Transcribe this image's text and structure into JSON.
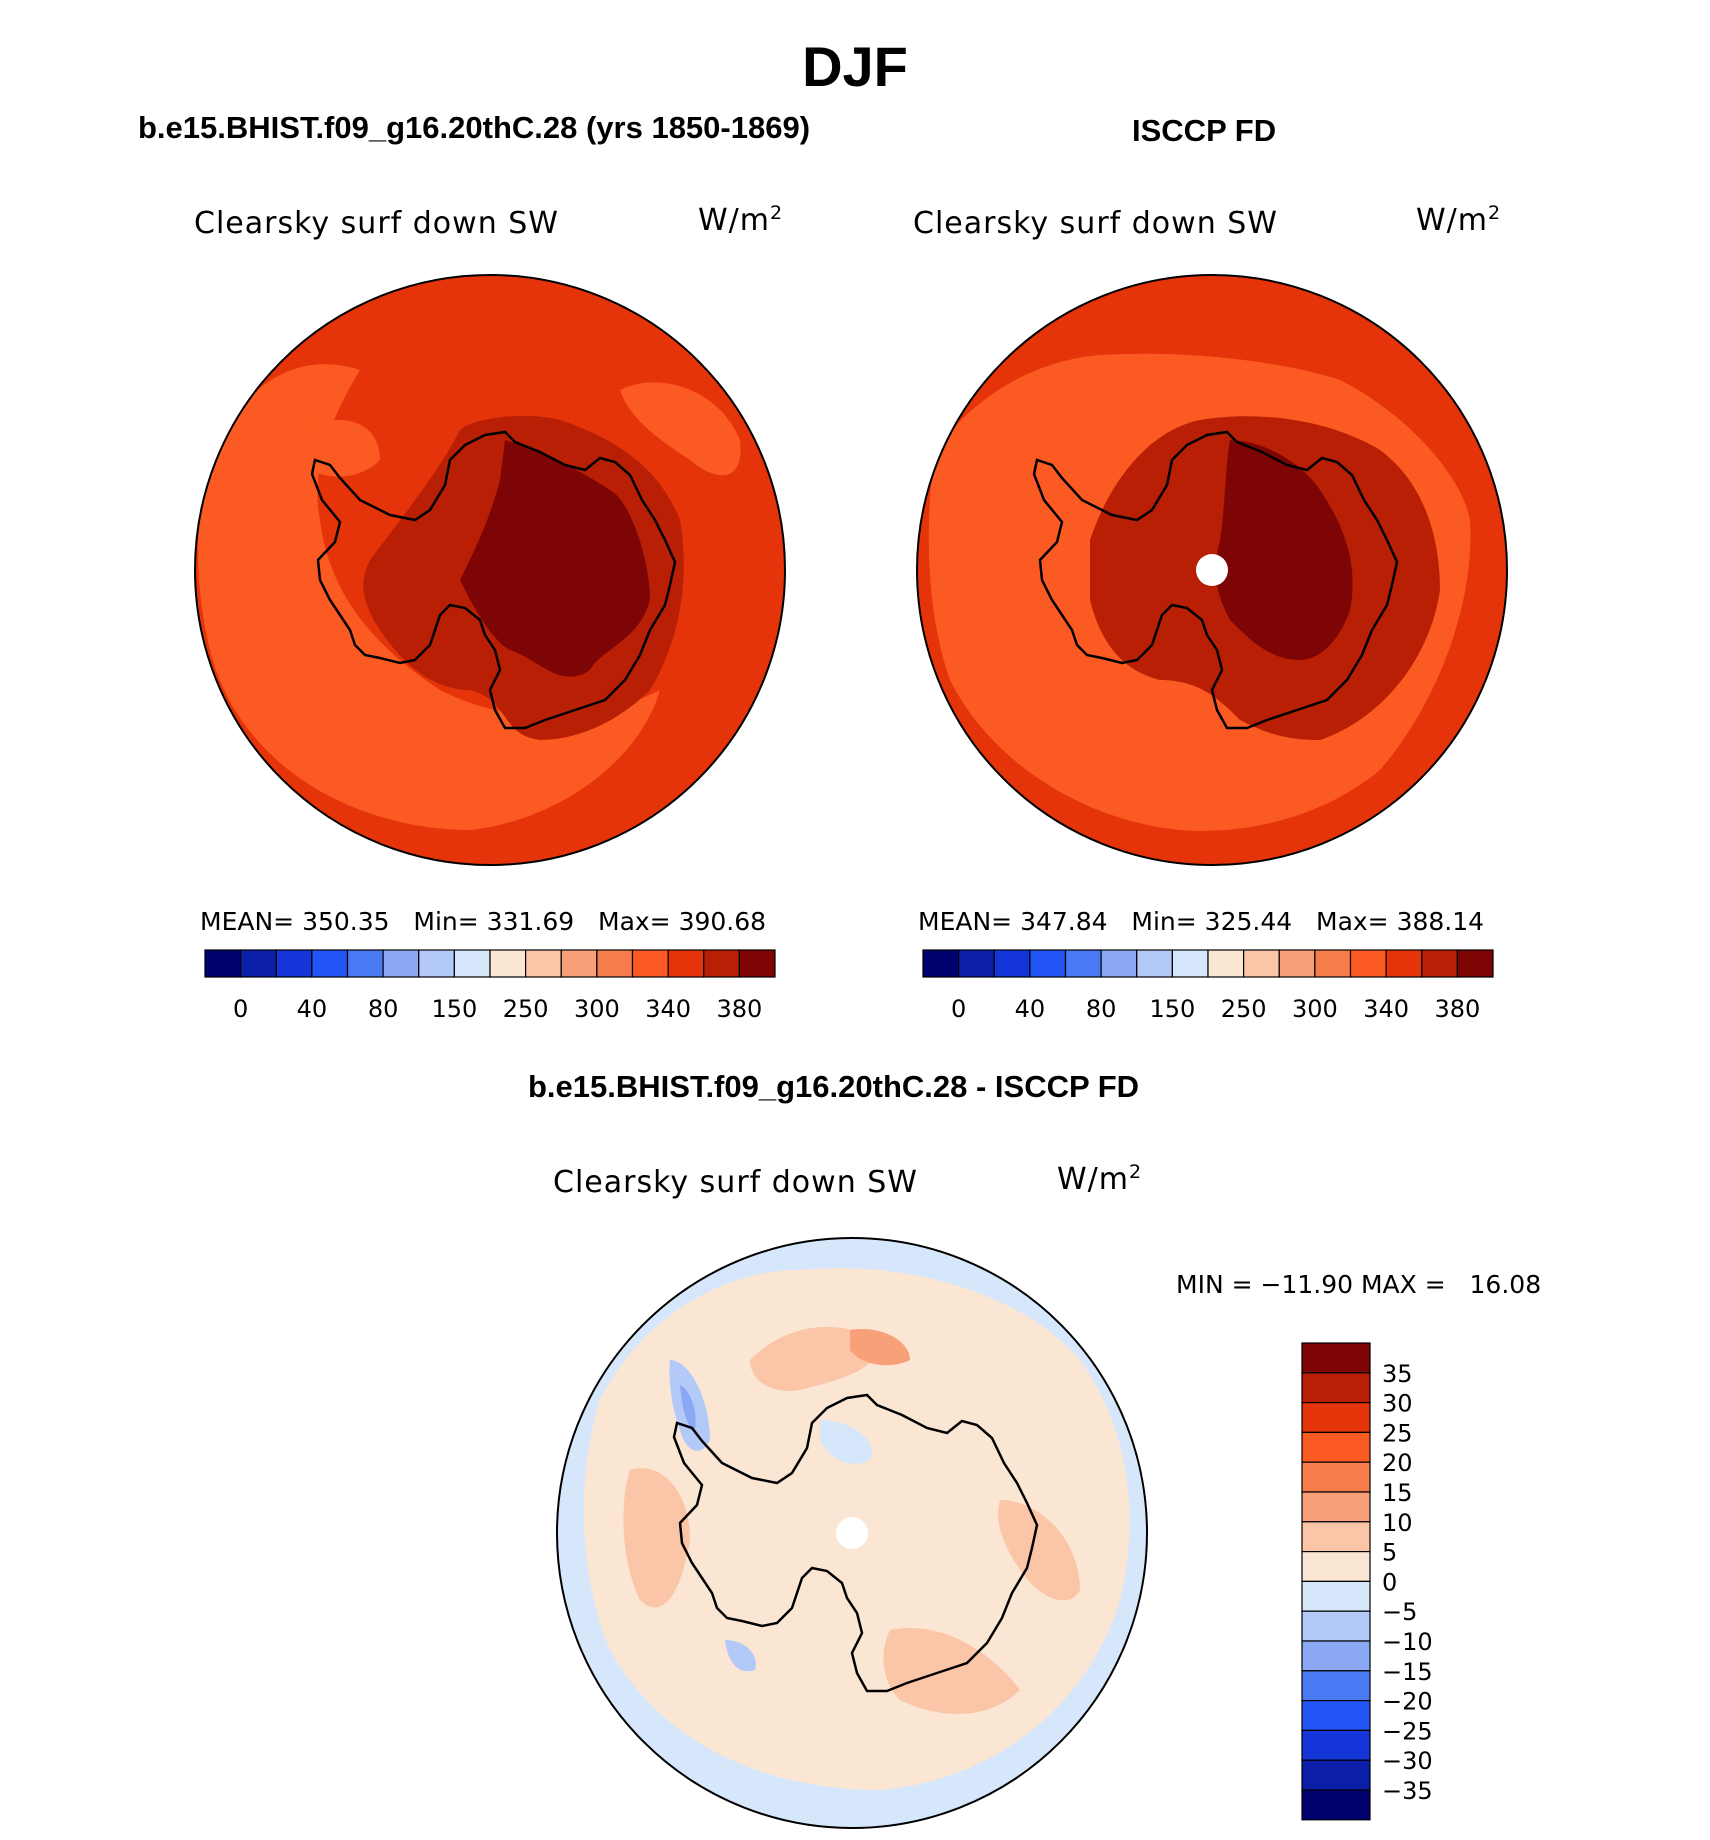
{
  "title": "DJF",
  "panels": [
    {
      "id": "model",
      "heading": "b.e15.BHIST.f09_g16.20thC.28 (yrs 1850-1869)",
      "variable": "Clearsky surf down SW",
      "units_base": "W/m",
      "units_exp": "2",
      "stats": {
        "mean_label": "MEAN=",
        "mean": "350.35",
        "min_label": "Min=",
        "min": "331.69",
        "max_label": "Max=",
        "max": "390.68"
      }
    },
    {
      "id": "obs",
      "heading": "ISCCP FD",
      "variable": "Clearsky surf down SW",
      "units_base": "W/m",
      "units_exp": "2",
      "stats": {
        "mean_label": "MEAN=",
        "mean": "347.84",
        "min_label": "Min=",
        "min": "325.44",
        "max_label": "Max=",
        "max": "388.14"
      }
    },
    {
      "id": "diff",
      "heading": "b.e15.BHIST.f09_g16.20thC.28 - ISCCP FD",
      "variable": "Clearsky surf down SW",
      "units_base": "W/m",
      "units_exp": "2",
      "stats": {
        "min_label": "MIN =",
        "min": "−11.90",
        "max_label": "MAX =",
        "max": "16.08"
      }
    }
  ],
  "colorbar_abs": {
    "colors": [
      "#00006e",
      "#0b1ea8",
      "#1436d8",
      "#2255f5",
      "#4a7af3",
      "#8aa8f3",
      "#b3c9f7",
      "#d7e7fb",
      "#fbe6d4",
      "#fbc6a8",
      "#f8a07a",
      "#f77c4c",
      "#fb5a22",
      "#e5330a",
      "#b81f05",
      "#7e0505"
    ],
    "tick_labels": [
      "0",
      "40",
      "80",
      "150",
      "250",
      "300",
      "340",
      "380"
    ]
  },
  "colorbar_diff": {
    "colors": [
      "#7e0505",
      "#b81f05",
      "#e5330a",
      "#fb5a22",
      "#f77c4c",
      "#f8a07a",
      "#fbc6a8",
      "#fbe6d4",
      "#d7e7fb",
      "#b3c9f7",
      "#8aa8f3",
      "#4a7af3",
      "#2255f5",
      "#1436d8",
      "#0b1ea8",
      "#00006e"
    ],
    "tick_labels": [
      "35",
      "30",
      "25",
      "20",
      "15",
      "10",
      "5",
      "0",
      "−5",
      "−10",
      "−15",
      "−20",
      "−25",
      "−30",
      "−35"
    ]
  },
  "map_colors": {
    "ocean_outer_abs": "#e5330a",
    "ocean_inner_abs": "#fb5a22",
    "land_mid_abs": "#b81f05",
    "land_high_abs": "#7e0505",
    "diff_neg": "#d7e7fb",
    "diff_pos": "#fbe6d4",
    "diff_pos2": "#fbc6a8",
    "diff_pos3": "#f8a07a",
    "diff_neg2": "#b3c9f7",
    "diff_neg3": "#8aa8f3",
    "pole_mask": "#ffffff",
    "coast": "#000000"
  }
}
